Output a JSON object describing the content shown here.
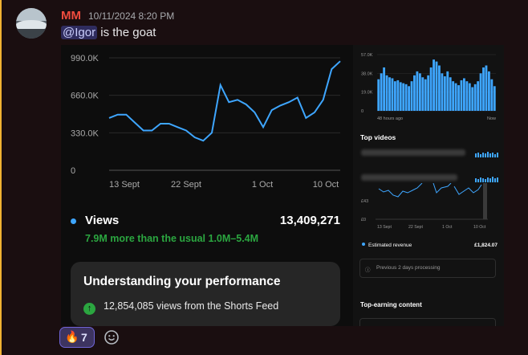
{
  "message": {
    "author": "MM",
    "timestamp": "10/11/2024 8:20 PM",
    "mention": "@Igor",
    "text": " is the goat"
  },
  "main_chart": {
    "chart_data": {
      "type": "line",
      "x_tick_labels": [
        "13 Sept",
        "22 Sept",
        "1 Oct",
        "10 Oct"
      ],
      "y_tick_labels": [
        "990.0K",
        "660.0K",
        "330.0K",
        "0"
      ],
      "ylim": [
        0,
        990000
      ],
      "series": [
        {
          "color": "#3ea6ff",
          "values": [
            460000,
            490000,
            490000,
            420000,
            350000,
            350000,
            410000,
            410000,
            380000,
            350000,
            290000,
            260000,
            330000,
            750000,
            600000,
            620000,
            580000,
            510000,
            380000,
            530000,
            570000,
            600000,
            640000,
            460000,
            510000,
            620000,
            890000,
            960000
          ]
        }
      ]
    }
  },
  "stats": {
    "views_label": "Views",
    "views_value": "13,409,271",
    "views_note": "7.9M more than the usual 1.0M–5.4M"
  },
  "performance": {
    "title": "Understanding your performance",
    "shorts_feed": "12,854,085 views from the Shorts Feed",
    "icon": "arrow-up-icon"
  },
  "side_panel": {
    "chart_data": {
      "type": "bar",
      "y_tick_labels": [
        "57.0K",
        "38.0K",
        "19.0K",
        "0"
      ],
      "x_tick_labels": [
        "48 hours ago",
        "Now"
      ],
      "ylim": [
        0,
        57000
      ],
      "values": [
        32000,
        38000,
        44000,
        36000,
        34000,
        33000,
        30000,
        31000,
        29000,
        28000,
        27000,
        25000,
        30000,
        36000,
        40000,
        38000,
        34000,
        32000,
        36000,
        44000,
        52000,
        50000,
        46000,
        38000,
        35000,
        40000,
        34000,
        30000,
        28000,
        26000,
        31000,
        33000,
        30000,
        28000,
        24000,
        27000,
        30000,
        38000,
        44000,
        46000,
        40000,
        32000,
        25000
      ]
    },
    "top_videos_label": "Top videos",
    "revenue_chart": {
      "chart_data": {
        "type": "line",
        "y_tick_labels": [
          "£43",
          "£0"
        ],
        "x_tick_labels": [
          "13 Sept",
          "22 Sept",
          "1 Oct",
          "10 Oct"
        ]
      }
    },
    "revenue_label": "Estimated revenue",
    "revenue_value": "£1,824.07",
    "processing_note": "Previous 2 days processing",
    "top_earning_label": "Top-earning content"
  },
  "reactions": [
    {
      "emoji": "fire-icon",
      "count": "7"
    }
  ],
  "colors": {
    "author": "#f04c3e",
    "line": "#3ea6ff",
    "positive": "#2ba640",
    "reaction_border": "#6f65d8"
  }
}
